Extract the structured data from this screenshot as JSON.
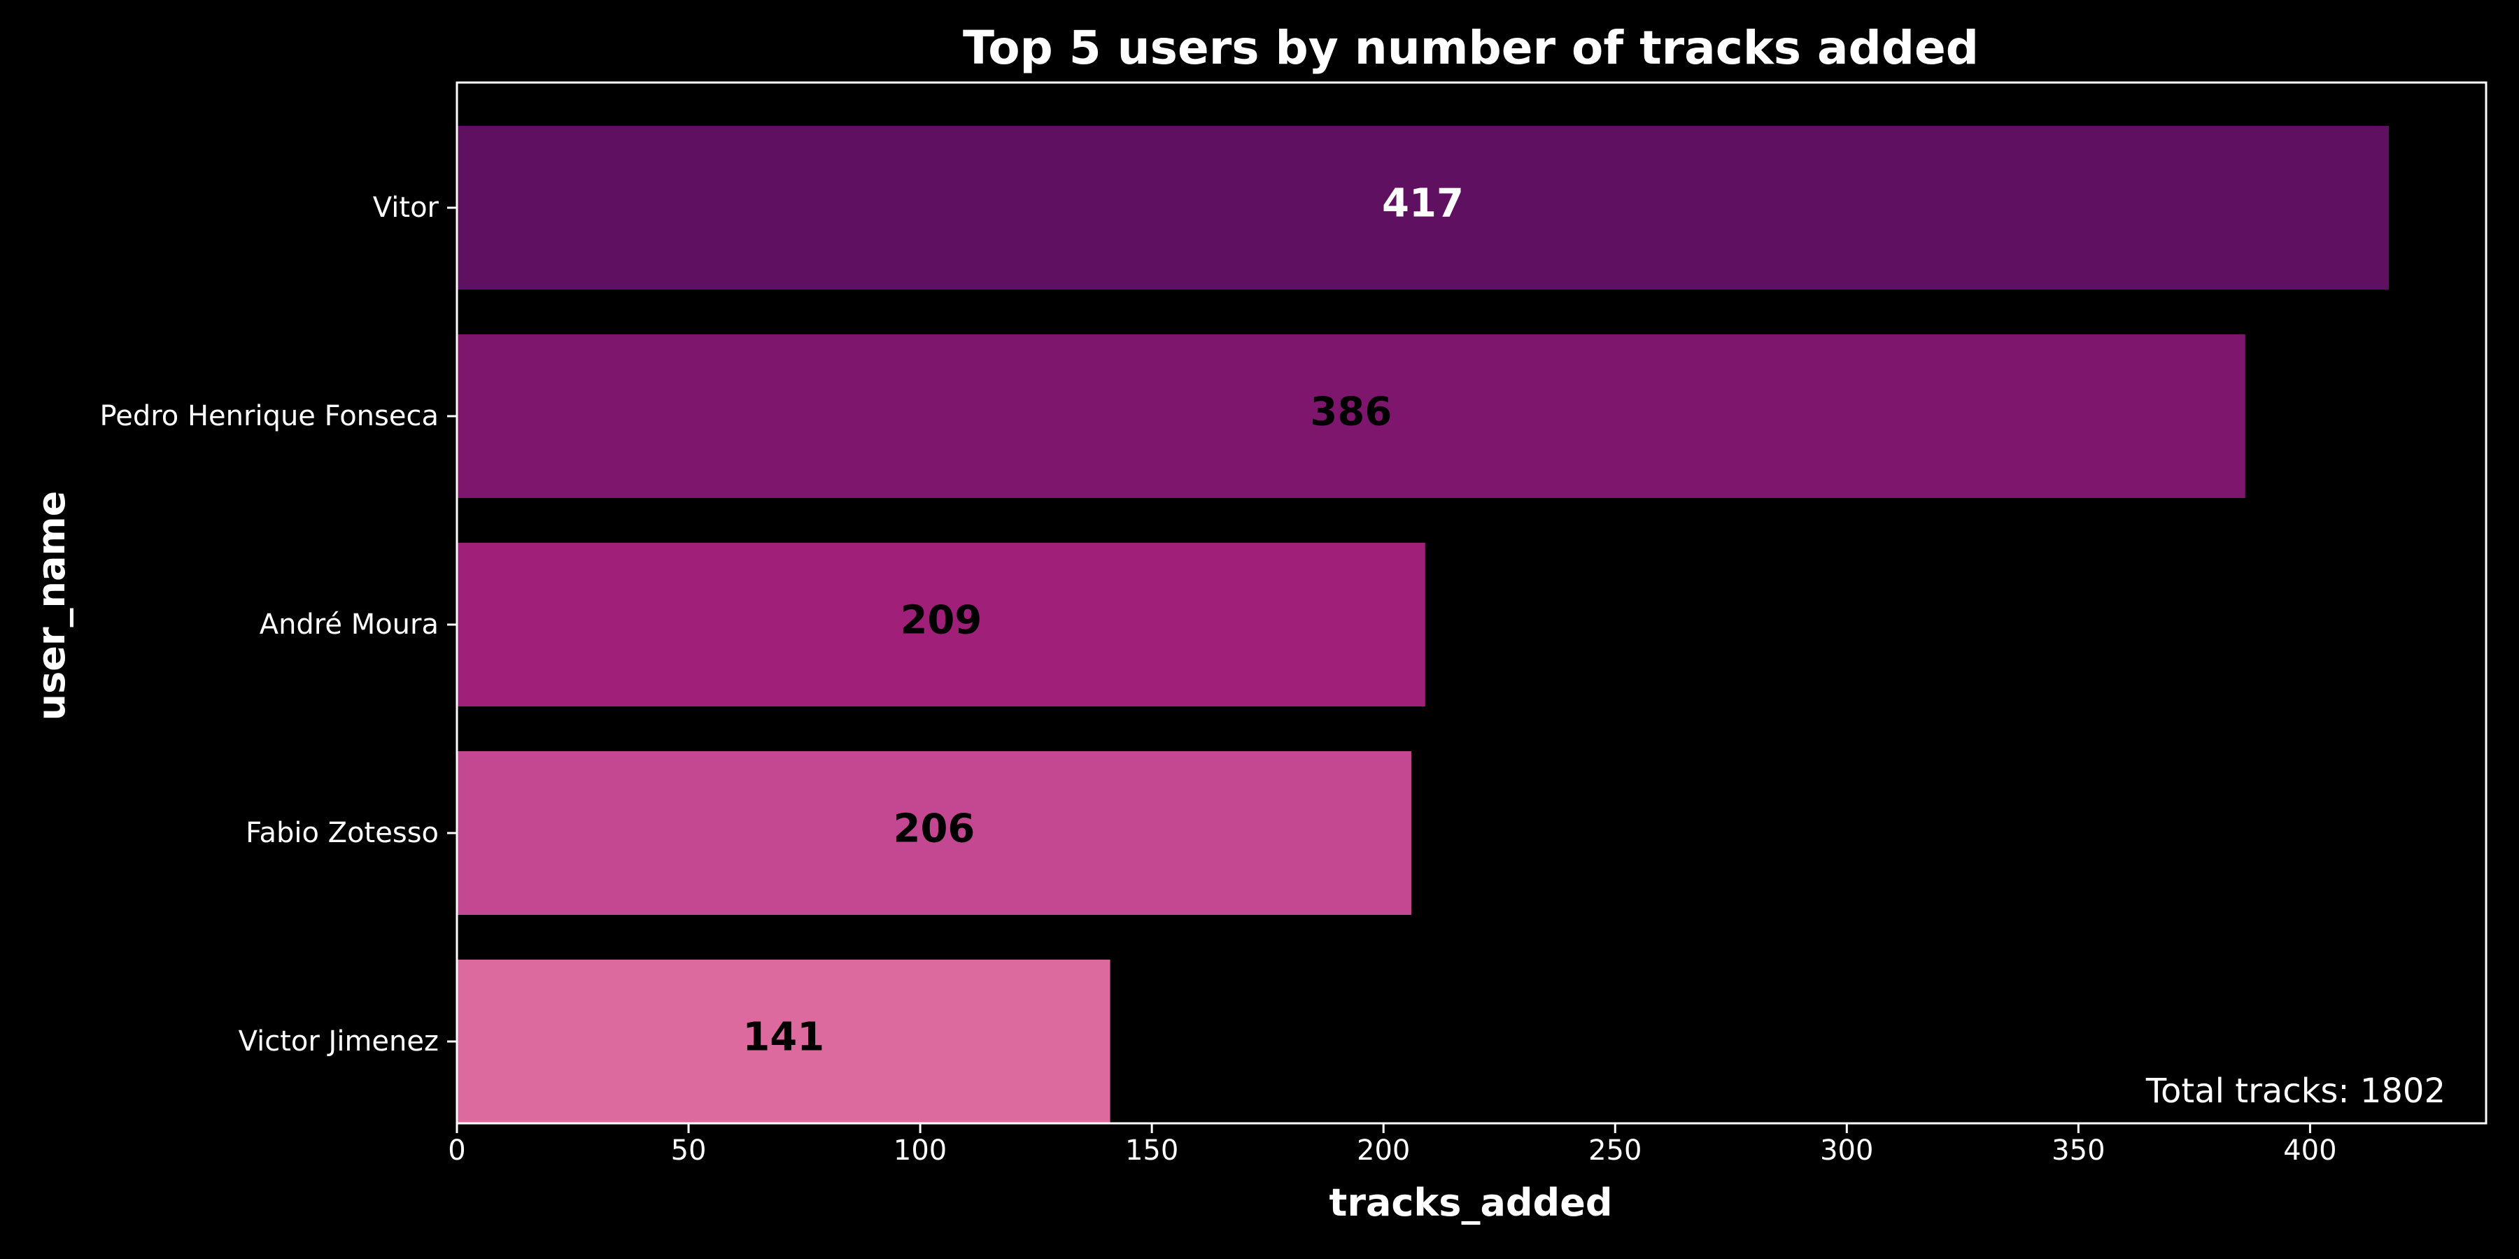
{
  "chart_data": {
    "type": "bar",
    "orientation": "horizontal",
    "title": "Top 5 users by number of tracks added",
    "xlabel": "tracks_added",
    "ylabel": "user_name",
    "categories": [
      "Vitor",
      "Pedro Henrique Fonseca",
      "André Moura",
      "Fabio Zotesso",
      "Victor Jimenez"
    ],
    "values": [
      417,
      386,
      209,
      206,
      141
    ],
    "data_labels": [
      "417",
      "386",
      "209",
      "206",
      "141"
    ],
    "colors": [
      "#601060",
      "#7e166e",
      "#9f1f79",
      "#c44791",
      "#dd6a9e"
    ],
    "label_colors": [
      "#ffffff",
      "#000000",
      "#000000",
      "#000000",
      "#000000"
    ],
    "xlim": [
      0,
      438
    ],
    "xticks": [
      0,
      50,
      100,
      150,
      200,
      250,
      300,
      350,
      400
    ],
    "grid": false,
    "background": "#000000",
    "text_color": "#ffffff",
    "annotation": "Total tracks: 1802"
  }
}
